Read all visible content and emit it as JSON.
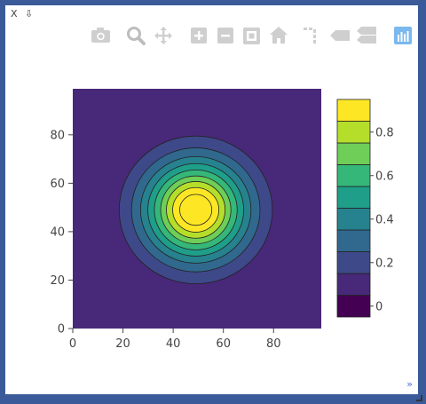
{
  "window": {
    "close_label": "X",
    "pin_label": "⇩",
    "expand_label": "»"
  },
  "modebar": [
    {
      "name": "camera-icon",
      "icon": "camera"
    },
    {
      "name": "zoom-icon",
      "icon": "magnifier"
    },
    {
      "name": "pan-icon",
      "icon": "move-arrows"
    },
    {
      "name": "zoom-in-icon",
      "icon": "plus-box"
    },
    {
      "name": "zoom-out-icon",
      "icon": "minus-box"
    },
    {
      "name": "autoscale-icon",
      "icon": "expand-corners"
    },
    {
      "name": "reset-axes-icon",
      "icon": "home"
    },
    {
      "name": "spike-lines-icon",
      "icon": "spikes"
    },
    {
      "name": "hover-closest-icon",
      "icon": "tag"
    },
    {
      "name": "hover-compare-icon",
      "icon": "double-tag"
    },
    {
      "name": "plotly-logo-icon",
      "icon": "plotly-bars",
      "color": "#7ab8ee"
    }
  ],
  "chart_data": {
    "type": "contour",
    "title": "",
    "xlabel": "",
    "ylabel": "",
    "xlim": [
      0,
      99
    ],
    "ylim": [
      0,
      99
    ],
    "x_ticks": [
      0,
      20,
      40,
      60,
      80
    ],
    "y_ticks": [
      0,
      20,
      40,
      60,
      80
    ],
    "z_function": "gaussian",
    "center": [
      49,
      49
    ],
    "levels_start": -0.05,
    "levels_step": 0.1,
    "levels_count": 10,
    "z_range": [
      -0.05,
      0.95
    ],
    "colorbar_ticks": [
      0,
      0.2,
      0.4,
      0.6,
      0.8
    ],
    "colorbar_tick_labels": [
      "0",
      "0.2",
      "0.4",
      "0.6",
      "0.8"
    ],
    "level_radii": [
      null,
      30.5,
      25.6,
      22.0,
      19.1,
      16.5,
      14.0,
      11.7,
      9.2,
      6.4
    ],
    "colorscale": [
      "#440154",
      "#482878",
      "#3e4989",
      "#31688e",
      "#26828e",
      "#1f9e89",
      "#35b779",
      "#6ece58",
      "#b5de2b",
      "#fde725"
    ],
    "contour_line_color": "#222222"
  }
}
